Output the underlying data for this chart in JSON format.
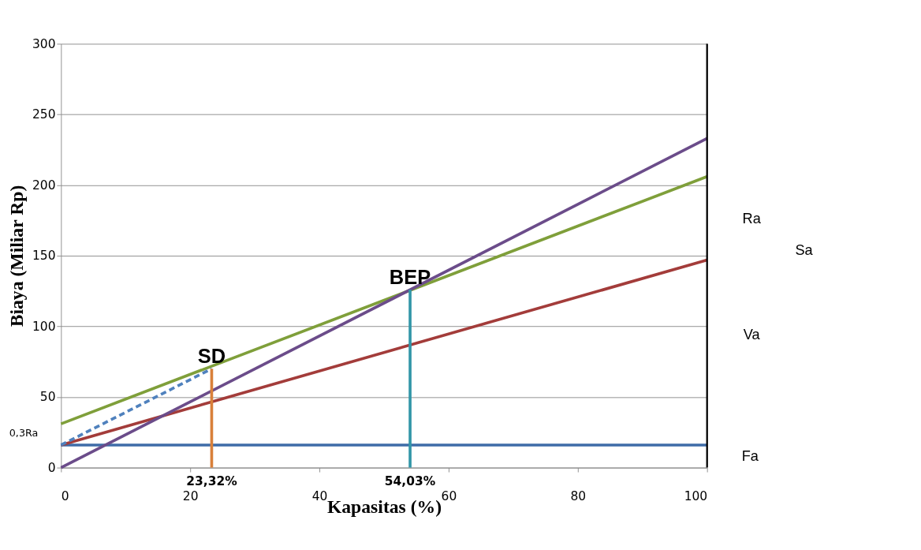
{
  "chart_data": {
    "type": "line",
    "xlabel": "Kapasitas (%)",
    "ylabel": "Biaya (Miliar Rp)",
    "xlim": [
      0,
      100
    ],
    "ylim": [
      0,
      300
    ],
    "xticks": [
      0,
      20,
      40,
      60,
      80,
      100
    ],
    "yticks": [
      0,
      50,
      100,
      150,
      200,
      250,
      300
    ],
    "grid": "y",
    "marker": "none",
    "series": [
      {
        "color": "#3e6ca8",
        "x": [
          0,
          100
        ],
        "values": [
          16,
          16
        ]
      },
      {
        "color": "#a33c3a",
        "x": [
          0,
          100
        ],
        "values": [
          16,
          147
        ]
      },
      {
        "color": "#7f9f3a",
        "x": [
          0,
          100
        ],
        "values": [
          31,
          206
        ]
      },
      {
        "color": "#6b4c8a",
        "x": [
          0,
          100
        ],
        "values": [
          0,
          233
        ]
      },
      {
        "color": "#4f81bd",
        "x": [
          0,
          23.32
        ],
        "values": [
          16,
          70
        ],
        "line_style": "dashed"
      },
      {
        "color": "#d9803a",
        "x": [
          23.32,
          23.32
        ],
        "values": [
          0,
          70
        ]
      },
      {
        "color": "#3296a8",
        "x": [
          54.03,
          54.03
        ],
        "values": [
          0,
          126
        ]
      }
    ],
    "ref_lines": [
      {
        "axis": "x",
        "value": 100,
        "color": "#000000"
      }
    ],
    "annotations": [
      {
        "text": "SD",
        "x": 23.32,
        "y": 70
      },
      {
        "text": "BEP",
        "x": 54.03,
        "y": 126
      },
      {
        "text": "23,32%",
        "x": 23.32,
        "y": 0
      },
      {
        "text": "54,03%",
        "x": 54.03,
        "y": 0
      },
      {
        "text": "Ra",
        "x": 100,
        "y": 176
      },
      "Sa",
      {
        "text": "Va",
        "x": 100,
        "y": 94
      },
      {
        "text": "Fa",
        "x": 100,
        "y": 8
      },
      "0,3Ra"
    ]
  }
}
